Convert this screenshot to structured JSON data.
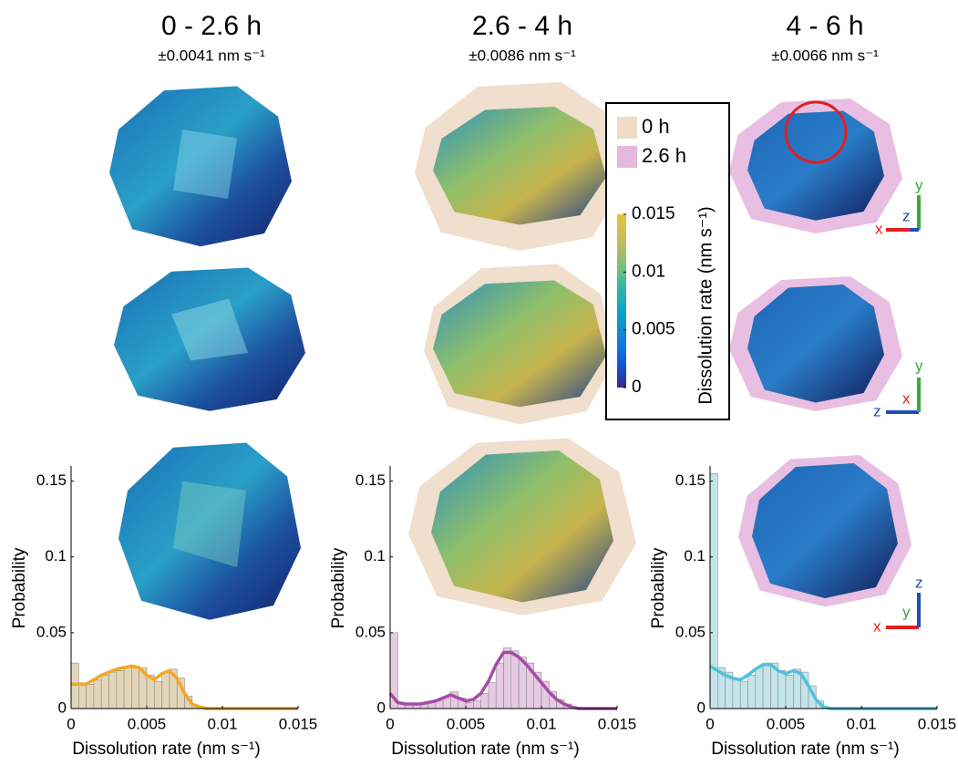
{
  "chart_data": [
    {
      "type": "histogram",
      "title": "0 - 2.6 h",
      "subtitle": "±0.0041 nm s⁻¹",
      "xlabel": "Dissolution rate (nm s⁻¹)",
      "ylabel": "Probability",
      "color": "#f5a623",
      "bar_color": "#e3d6b8",
      "bins": [
        0,
        0.0005,
        0.001,
        0.0015,
        0.002,
        0.0025,
        0.003,
        0.0035,
        0.004,
        0.0045,
        0.005,
        0.0055,
        0.006,
        0.0065,
        0.007,
        0.0075,
        0.008,
        0.0085,
        0.009,
        0.0095,
        0.01,
        0.0105,
        0.011,
        0.0115,
        0.012,
        0.0125,
        0.013,
        0.0135,
        0.014,
        0.0145,
        0.015
      ],
      "counts": [
        0.03,
        0.017,
        0.016,
        0.019,
        0.022,
        0.024,
        0.025,
        0.027,
        0.028,
        0.027,
        0.022,
        0.018,
        0.024,
        0.026,
        0.02,
        0.008,
        0.002,
        0.001,
        0,
        0,
        0,
        0,
        0,
        0,
        0,
        0,
        0,
        0,
        0,
        0
      ],
      "curve": [
        0.016,
        0.016,
        0.016,
        0.019,
        0.022,
        0.024,
        0.026,
        0.027,
        0.028,
        0.027,
        0.022,
        0.019,
        0.023,
        0.025,
        0.02,
        0.01,
        0.003,
        0.001,
        0,
        0,
        0,
        0,
        0,
        0,
        0,
        0,
        0,
        0,
        0,
        0,
        0
      ],
      "xlim": [
        0,
        0.015
      ],
      "xticks": [
        0,
        0.005,
        0.01,
        0.015
      ],
      "ylim": [
        0,
        0.16
      ],
      "yticks": [
        0,
        0.05,
        0.1,
        0.15
      ],
      "grid": false
    },
    {
      "type": "histogram",
      "title": "2.6 - 4 h",
      "subtitle": "±0.0086 nm s⁻¹",
      "xlabel": "Dissolution rate (nm s⁻¹)",
      "ylabel": "Probability",
      "color": "#a64ca6",
      "bar_color": "#e6c9e2",
      "bins": [
        0,
        0.0005,
        0.001,
        0.0015,
        0.002,
        0.0025,
        0.003,
        0.0035,
        0.004,
        0.0045,
        0.005,
        0.0055,
        0.006,
        0.0065,
        0.007,
        0.0075,
        0.008,
        0.0085,
        0.009,
        0.0095,
        0.01,
        0.0105,
        0.011,
        0.0115,
        0.012,
        0.0125,
        0.013,
        0.0135,
        0.014,
        0.0145,
        0.015
      ],
      "counts": [
        0.05,
        0.004,
        0.003,
        0.003,
        0.003,
        0.004,
        0.005,
        0.007,
        0.011,
        0.007,
        0.004,
        0.005,
        0.01,
        0.017,
        0.03,
        0.04,
        0.038,
        0.034,
        0.03,
        0.024,
        0.018,
        0.011,
        0.006,
        0.003,
        0.001,
        0,
        0,
        0,
        0,
        0
      ],
      "curve": [
        0.01,
        0.004,
        0.003,
        0.003,
        0.003,
        0.004,
        0.005,
        0.007,
        0.009,
        0.007,
        0.005,
        0.006,
        0.01,
        0.018,
        0.029,
        0.037,
        0.037,
        0.034,
        0.029,
        0.023,
        0.017,
        0.011,
        0.006,
        0.003,
        0.001,
        0,
        0,
        0,
        0,
        0,
        0
      ],
      "xlim": [
        0,
        0.015
      ],
      "xticks": [
        0,
        0.005,
        0.01,
        0.015
      ],
      "ylim": [
        0,
        0.16
      ],
      "yticks": [
        0,
        0.05,
        0.1,
        0.15
      ],
      "grid": false
    },
    {
      "type": "histogram",
      "title": "4 - 6 h",
      "subtitle": "±0.0066 nm s⁻¹",
      "xlabel": "Dissolution rate (nm s⁻¹)",
      "ylabel": "Probability",
      "color": "#4fc3dc",
      "bar_color": "#c4e3ea",
      "bins": [
        0,
        0.0005,
        0.001,
        0.0015,
        0.002,
        0.0025,
        0.003,
        0.0035,
        0.004,
        0.0045,
        0.005,
        0.0055,
        0.006,
        0.0065,
        0.007,
        0.0075,
        0.008,
        0.0085,
        0.009,
        0.0095,
        0.01,
        0.0105,
        0.011,
        0.0115,
        0.012,
        0.0125,
        0.013,
        0.0135,
        0.014,
        0.0145,
        0.015
      ],
      "counts": [
        0.155,
        0.027,
        0.024,
        0.02,
        0.018,
        0.022,
        0.027,
        0.03,
        0.03,
        0.025,
        0.022,
        0.026,
        0.024,
        0.015,
        0.005,
        0.001,
        0,
        0,
        0,
        0,
        0,
        0,
        0,
        0,
        0,
        0,
        0,
        0,
        0,
        0
      ],
      "curve": [
        0.028,
        0.025,
        0.022,
        0.02,
        0.019,
        0.022,
        0.026,
        0.029,
        0.029,
        0.025,
        0.023,
        0.025,
        0.023,
        0.015,
        0.006,
        0.001,
        0,
        0,
        0,
        0,
        0,
        0,
        0,
        0,
        0,
        0,
        0,
        0,
        0,
        0,
        0
      ],
      "xlim": [
        0,
        0.015
      ],
      "xticks": [
        0,
        0.005,
        0.01,
        0.015
      ],
      "ylim": [
        0,
        0.16
      ],
      "yticks": [
        0,
        0.05,
        0.1,
        0.15
      ],
      "grid": false
    }
  ],
  "legend": {
    "entries": [
      {
        "name": "0 h",
        "color": "#eedcc6"
      },
      {
        "name": "2.6 h",
        "color": "#e5b8df"
      }
    ],
    "colorbar": {
      "label": "Dissolution rate (nm s⁻¹)",
      "lim": [
        0,
        0.015
      ],
      "ticks": [
        0,
        0.005,
        0.01,
        0.015
      ],
      "colormap": [
        "#352a87",
        "#0f5cdd",
        "#1481d6",
        "#06a4ca",
        "#2eb7a4",
        "#87bf77",
        "#c9bb5a",
        "#e8c43a"
      ]
    }
  },
  "orientation_labels": [
    [
      "x",
      "y",
      "z"
    ],
    [
      "z",
      "y",
      "x"
    ],
    [
      "x",
      "z",
      "y"
    ]
  ]
}
